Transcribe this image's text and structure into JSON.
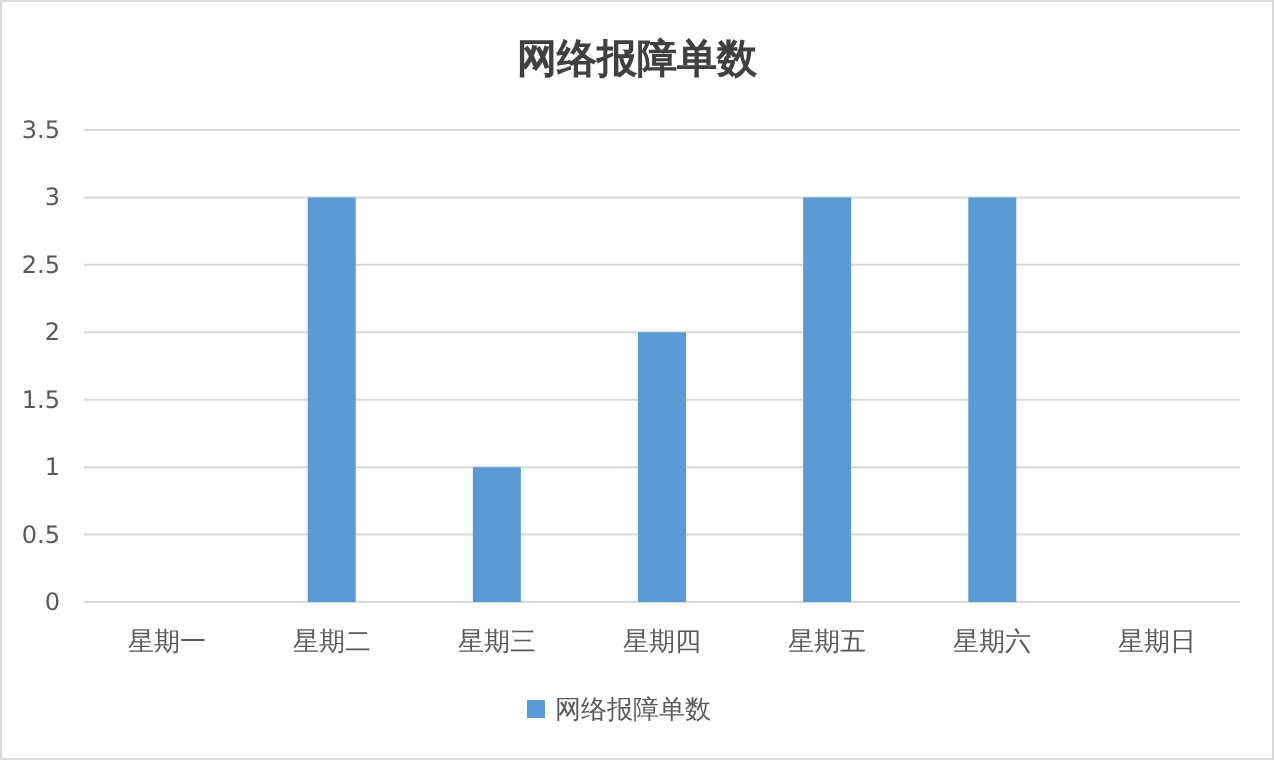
{
  "chart_data": {
    "type": "bar",
    "title": "网络报障单数",
    "categories": [
      "星期一",
      "星期二",
      "星期三",
      "星期四",
      "星期五",
      "星期六",
      "星期日"
    ],
    "series": [
      {
        "name": "网络报障单数",
        "color": "#5b9bd5",
        "values": [
          0,
          3,
          1,
          2,
          3,
          3,
          0
        ]
      }
    ],
    "ylim": [
      0,
      3.5
    ],
    "yticks": [
      0,
      0.5,
      1,
      1.5,
      2,
      2.5,
      3,
      3.5
    ],
    "grid": "y",
    "legend": "bottom"
  }
}
